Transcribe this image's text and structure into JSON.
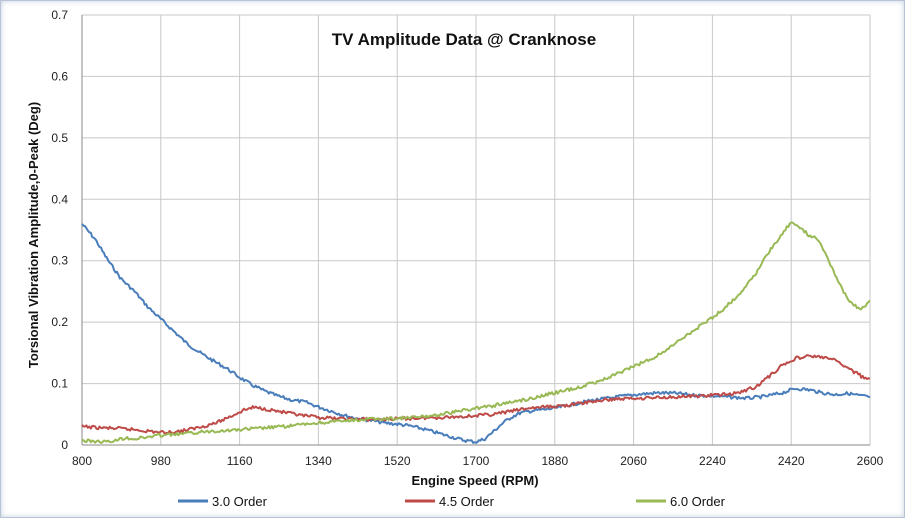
{
  "chart_data": {
    "type": "line",
    "title": "TV Amplitude Data @ Cranknose",
    "xlabel": "Engine Speed (RPM)",
    "ylabel": "Torsional Vibration Amplitude,0-Peak (Deg)",
    "xlim": [
      800,
      2600
    ],
    "ylim": [
      0,
      0.7
    ],
    "x_ticks": [
      "800",
      "980",
      "1160",
      "1340",
      "1520",
      "1700",
      "1880",
      "2060",
      "2240",
      "2420",
      "2600"
    ],
    "y_ticks": [
      "0",
      "0.1",
      "0.2",
      "0.3",
      "0.4",
      "0.5",
      "0.6",
      "0.7"
    ],
    "grid": true,
    "legend_position": "bottom",
    "series": [
      {
        "name": "3.0 Order",
        "color": "#4a7ebb",
        "x": [
          800,
          830,
          860,
          890,
          920,
          950,
          980,
          1010,
          1040,
          1070,
          1100,
          1130,
          1160,
          1190,
          1220,
          1250,
          1280,
          1310,
          1340,
          1370,
          1400,
          1430,
          1460,
          1490,
          1520,
          1550,
          1580,
          1610,
          1640,
          1670,
          1700,
          1720,
          1740,
          1760,
          1780,
          1800,
          1830,
          1860,
          1880,
          1920,
          1960,
          2000,
          2040,
          2080,
          2120,
          2160,
          2200,
          2240,
          2280,
          2320,
          2360,
          2400,
          2430,
          2460,
          2490,
          2520,
          2550,
          2580,
          2600
        ],
        "values": [
          0.36,
          0.335,
          0.3,
          0.27,
          0.25,
          0.225,
          0.205,
          0.185,
          0.165,
          0.15,
          0.137,
          0.125,
          0.11,
          0.097,
          0.087,
          0.079,
          0.073,
          0.07,
          0.062,
          0.055,
          0.048,
          0.043,
          0.04,
          0.036,
          0.034,
          0.031,
          0.026,
          0.02,
          0.014,
          0.008,
          0.005,
          0.01,
          0.022,
          0.035,
          0.045,
          0.052,
          0.056,
          0.058,
          0.06,
          0.066,
          0.072,
          0.076,
          0.08,
          0.083,
          0.085,
          0.084,
          0.081,
          0.08,
          0.078,
          0.076,
          0.079,
          0.085,
          0.092,
          0.09,
          0.085,
          0.082,
          0.084,
          0.08,
          0.078
        ]
      },
      {
        "name": "4.5 Order",
        "color": "#be4b48",
        "x": [
          800,
          840,
          880,
          920,
          960,
          990,
          1020,
          1050,
          1080,
          1110,
          1140,
          1170,
          1190,
          1210,
          1240,
          1270,
          1300,
          1340,
          1380,
          1420,
          1460,
          1500,
          1540,
          1580,
          1620,
          1660,
          1700,
          1740,
          1780,
          1820,
          1860,
          1900,
          1940,
          1980,
          2020,
          2060,
          2100,
          2140,
          2180,
          2220,
          2260,
          2300,
          2340,
          2370,
          2400,
          2430,
          2460,
          2490,
          2520,
          2550,
          2580,
          2600
        ],
        "values": [
          0.03,
          0.028,
          0.027,
          0.025,
          0.022,
          0.02,
          0.022,
          0.026,
          0.031,
          0.037,
          0.047,
          0.057,
          0.061,
          0.06,
          0.056,
          0.052,
          0.048,
          0.045,
          0.043,
          0.042,
          0.042,
          0.042,
          0.043,
          0.044,
          0.045,
          0.046,
          0.048,
          0.05,
          0.055,
          0.06,
          0.062,
          0.064,
          0.068,
          0.072,
          0.075,
          0.076,
          0.077,
          0.078,
          0.079,
          0.08,
          0.082,
          0.085,
          0.095,
          0.112,
          0.13,
          0.141,
          0.145,
          0.143,
          0.138,
          0.125,
          0.112,
          0.108
        ]
      },
      {
        "name": "6.0 Order",
        "color": "#98b954",
        "x": [
          800,
          830,
          860,
          880,
          900,
          920,
          950,
          980,
          1010,
          1040,
          1070,
          1100,
          1140,
          1180,
          1220,
          1260,
          1300,
          1340,
          1380,
          1420,
          1460,
          1500,
          1540,
          1580,
          1620,
          1660,
          1700,
          1740,
          1780,
          1820,
          1860,
          1900,
          1940,
          1980,
          2020,
          2060,
          2100,
          2140,
          2180,
          2220,
          2260,
          2300,
          2340,
          2370,
          2400,
          2420,
          2440,
          2460,
          2480,
          2500,
          2520,
          2540,
          2560,
          2580,
          2600
        ],
        "values": [
          0.007,
          0.006,
          0.005,
          0.008,
          0.012,
          0.01,
          0.013,
          0.016,
          0.017,
          0.019,
          0.021,
          0.023,
          0.024,
          0.026,
          0.028,
          0.03,
          0.033,
          0.036,
          0.038,
          0.04,
          0.042,
          0.043,
          0.044,
          0.046,
          0.05,
          0.055,
          0.06,
          0.064,
          0.07,
          0.075,
          0.082,
          0.088,
          0.095,
          0.104,
          0.115,
          0.128,
          0.14,
          0.157,
          0.178,
          0.198,
          0.218,
          0.245,
          0.28,
          0.315,
          0.345,
          0.362,
          0.355,
          0.342,
          0.335,
          0.31,
          0.278,
          0.25,
          0.228,
          0.222,
          0.235
        ]
      }
    ]
  }
}
